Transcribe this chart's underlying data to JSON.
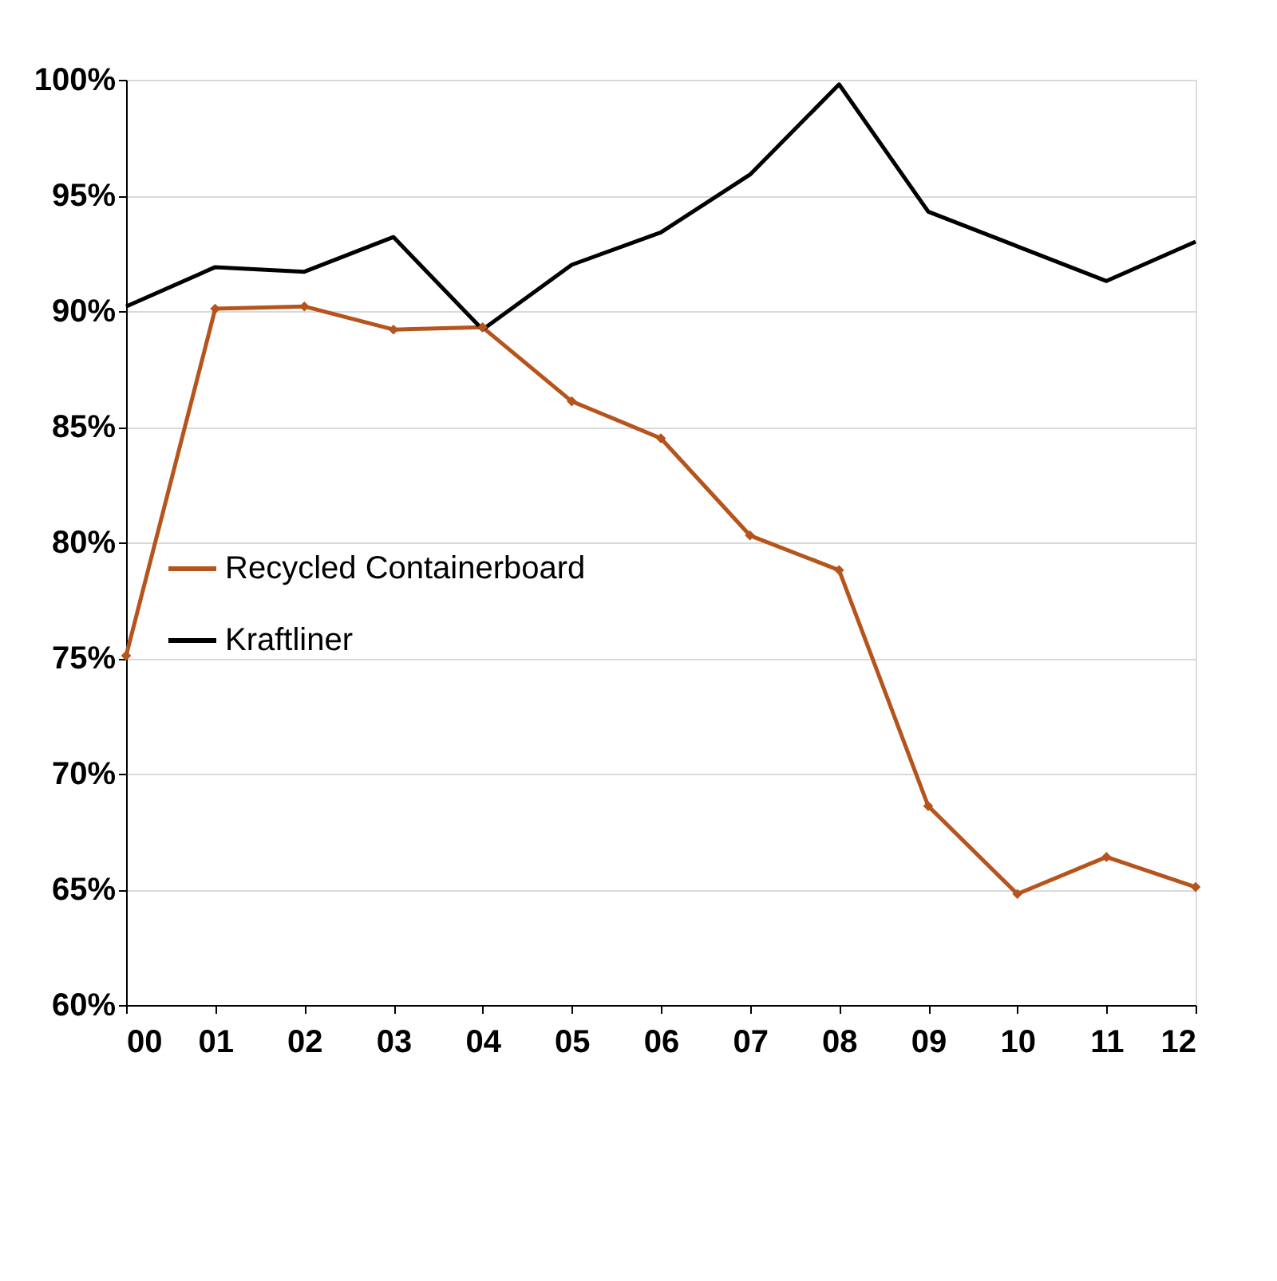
{
  "chart_data": {
    "type": "line",
    "categories": [
      "00",
      "01",
      "02",
      "03",
      "04",
      "05",
      "06",
      "07",
      "08",
      "09",
      "10",
      "11",
      "12"
    ],
    "series": [
      {
        "name": "Recycled Containerboard",
        "color": "#b5541c",
        "marker": "diamond",
        "values": [
          75.1,
          90.1,
          90.2,
          89.2,
          89.3,
          86.1,
          84.5,
          80.3,
          78.8,
          68.6,
          64.8,
          66.4,
          65.1
        ]
      },
      {
        "name": "Kraftliner",
        "color": "#000000",
        "marker": "none",
        "values": [
          90.2,
          91.9,
          91.7,
          93.2,
          89.2,
          92.0,
          93.4,
          95.9,
          99.8,
          94.3,
          92.8,
          91.3,
          93.0
        ]
      }
    ],
    "ylim": [
      60,
      100
    ],
    "yticks": [
      {
        "value": 60,
        "label": "60%"
      },
      {
        "value": 65,
        "label": "65%"
      },
      {
        "value": 70,
        "label": "70%"
      },
      {
        "value": 75,
        "label": "75%"
      },
      {
        "value": 80,
        "label": "80%"
      },
      {
        "value": 85,
        "label": "85%"
      },
      {
        "value": 90,
        "label": "90%"
      },
      {
        "value": 95,
        "label": "95%"
      },
      {
        "value": 100,
        "label": "100%"
      }
    ],
    "grid": "y",
    "legend": "center left",
    "line_style": "solid"
  }
}
